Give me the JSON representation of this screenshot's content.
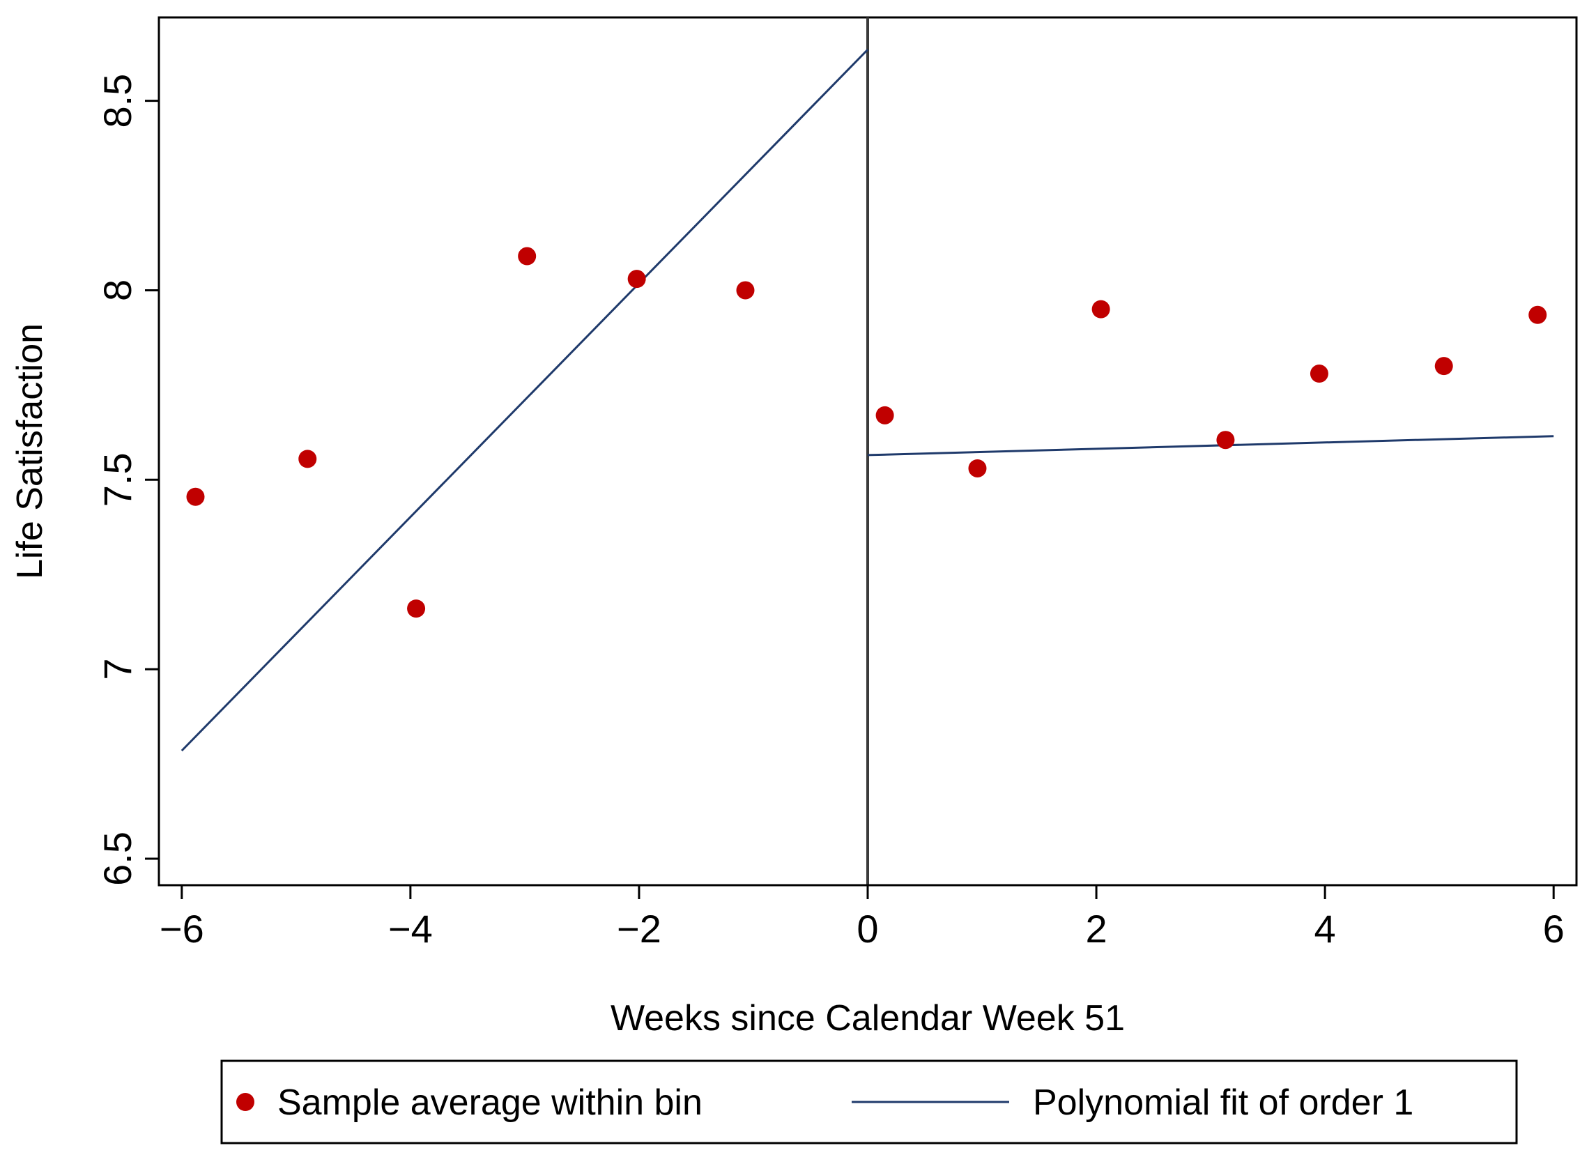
{
  "chart_data": {
    "type": "scatter",
    "title": "",
    "xlabel": "Weeks since Calendar Week 51",
    "ylabel": "Life Satisfaction",
    "xlim": [
      -6.2,
      6.2
    ],
    "ylim": [
      6.43,
      8.72
    ],
    "xticks": [
      -6,
      -4,
      -2,
      0,
      2,
      4,
      6
    ],
    "xtick_labels": [
      "−6",
      "−4",
      "−2",
      "0",
      "2",
      "4",
      "6"
    ],
    "yticks": [
      6.5,
      7,
      7.5,
      8,
      8.5
    ],
    "ytick_labels": [
      "6.5",
      "7",
      "7.5",
      "8",
      "8.5"
    ],
    "cutoff_x": 0,
    "grid": false,
    "series": [
      {
        "name": "Sample average within bin",
        "kind": "points",
        "color": "#c00000",
        "x": [
          -5.88,
          -4.9,
          -3.95,
          -2.98,
          -2.02,
          -1.07,
          0.15,
          0.96,
          2.04,
          3.13,
          3.95,
          5.04,
          5.86
        ],
        "y": [
          7.455,
          7.555,
          7.16,
          8.09,
          8.03,
          8.0,
          7.67,
          7.53,
          7.95,
          7.605,
          7.78,
          7.8,
          7.935
        ]
      },
      {
        "name": "Polynomial fit of order 1",
        "kind": "line",
        "color": "#1f3a6b",
        "segments": [
          {
            "x": [
              -6,
              0
            ],
            "y": [
              6.785,
              8.635
            ]
          },
          {
            "x": [
              0,
              6
            ],
            "y": [
              7.565,
              7.615
            ]
          }
        ]
      }
    ],
    "legend": {
      "position": "bottom",
      "items": [
        {
          "label": "Sample average within bin",
          "marker": "dot"
        },
        {
          "label": "Polynomial fit of order 1",
          "marker": "line"
        }
      ]
    }
  }
}
